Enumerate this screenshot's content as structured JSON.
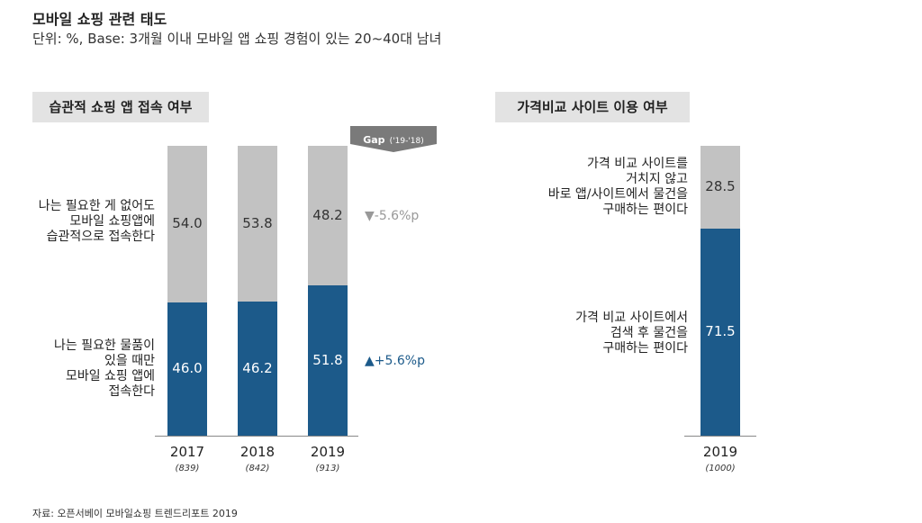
{
  "header": {
    "title": "모바일 쇼핑 관련 태도",
    "subtitle": "단위: %, Base: 3개월 이내 모바일 앱 쇼핑 경험이 있는 20~40대 남녀"
  },
  "colors": {
    "top": "#c2c2c2",
    "bottom": "#1c5a8a",
    "down": "#999999",
    "up": "#1c5a8a"
  },
  "chart_data": [
    {
      "type": "bar",
      "stacked": true,
      "title": "습관적 쇼핑 앱 접속 여부",
      "categories": [
        "2017",
        "2018",
        "2019"
      ],
      "sample_sizes": [
        "(839)",
        "(842)",
        "(913)"
      ],
      "series": [
        {
          "name": "나는 필요한 물품이 있을 때만 모바일 쇼핑 앱에 접속한다",
          "values": [
            46.0,
            46.2,
            51.8
          ]
        },
        {
          "name": "나는 필요한 게 없어도 모바일 쇼핑앱에 습관적으로 접속한다",
          "values": [
            54.0,
            53.8,
            48.2
          ]
        }
      ],
      "labels_bottom": [
        "46.0",
        "46.2",
        "51.8"
      ],
      "labels_top": [
        "54.0",
        "53.8",
        "48.2"
      ],
      "ylim": [
        0,
        100
      ],
      "gap_header": {
        "label": "Gap",
        "period": "('19-'18)"
      },
      "gap_top": "▼-5.6%p",
      "gap_bottom": "▲+5.6%p"
    },
    {
      "type": "bar",
      "stacked": true,
      "title": "가격비교 사이트 이용 여부",
      "categories": [
        "2019"
      ],
      "sample_sizes": [
        "(1000)"
      ],
      "series": [
        {
          "name": "가격 비교 사이트에서 검색 후 물건을 구매하는 편이다",
          "values": [
            71.5
          ]
        },
        {
          "name": "가격 비교 사이트를 거치지 않고 바로 앱/사이트에서 물건을 구매하는 편이다",
          "values": [
            28.5
          ]
        }
      ],
      "labels_bottom": [
        "71.5"
      ],
      "labels_top": [
        "28.5"
      ],
      "ylim": [
        0,
        100
      ]
    }
  ],
  "left_labels": {
    "top": [
      "나는 필요한 게 없어도",
      "모바일 쇼핑앱에",
      "습관적으로 접속한다"
    ],
    "bottom": [
      "나는 필요한 물품이",
      "있을 때만",
      "모바일 쇼핑 앱에",
      "접속한다"
    ]
  },
  "right_labels": {
    "top": [
      "가격 비교 사이트를",
      "거치지 않고",
      "바로 앱/사이트에서 물건을",
      "구매하는 편이다"
    ],
    "bottom": [
      "가격 비교 사이트에서",
      "검색 후 물건을",
      "구매하는 편이다"
    ]
  },
  "source": "자료: 오픈서베이 모바일쇼핑 트렌드리포트 2019"
}
